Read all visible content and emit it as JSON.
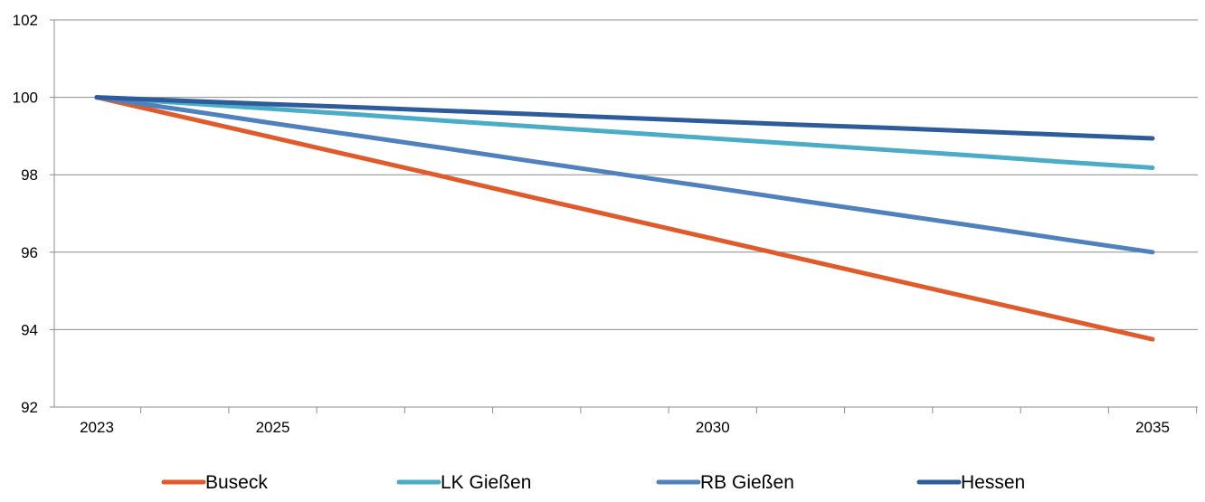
{
  "chart_data": {
    "type": "line",
    "title": "",
    "xlabel": "",
    "ylabel": "",
    "x": [
      2023,
      2024,
      2025,
      2026,
      2027,
      2028,
      2029,
      2030,
      2031,
      2032,
      2033,
      2034,
      2035
    ],
    "x_tick_labels": [
      "2023",
      "2025",
      "2030",
      "2035"
    ],
    "x_tick_values": [
      2023,
      2025,
      2030,
      2035
    ],
    "ylim": [
      92,
      102
    ],
    "y_ticks": [
      92,
      94,
      96,
      98,
      100,
      102
    ],
    "y_tick_labels": [
      "92",
      "94",
      "96",
      "98",
      "100",
      "102"
    ],
    "grid": "horizontal",
    "legend_position": "bottom",
    "series": [
      {
        "name": "Buseck",
        "color": "#E05A2B",
        "values": [
          100.0,
          99.48,
          98.96,
          98.44,
          97.92,
          97.39,
          96.87,
          96.35,
          95.83,
          95.31,
          94.79,
          94.27,
          93.75
        ]
      },
      {
        "name": "LK Gießen",
        "color": "#4BACC6",
        "values": [
          100.0,
          99.85,
          99.7,
          99.55,
          99.39,
          99.24,
          99.09,
          98.94,
          98.79,
          98.64,
          98.49,
          98.33,
          98.18
        ]
      },
      {
        "name": "RB Gießen",
        "color": "#4F81BD",
        "values": [
          100.0,
          99.67,
          99.33,
          99.0,
          98.67,
          98.33,
          98.0,
          97.67,
          97.33,
          97.0,
          96.67,
          96.33,
          96.0
        ]
      },
      {
        "name": "Hessen",
        "color": "#2E5C9A",
        "values": [
          100.0,
          99.91,
          99.82,
          99.74,
          99.65,
          99.56,
          99.47,
          99.38,
          99.29,
          99.21,
          99.12,
          99.03,
          98.94
        ]
      }
    ]
  }
}
